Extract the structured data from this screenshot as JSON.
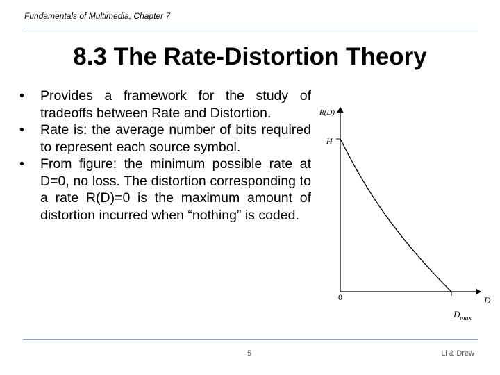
{
  "header": {
    "text": "Fundamentals of Multimedia, Chapter 7"
  },
  "title": "8.3 The Rate-Distortion Theory",
  "bullets": [
    "Provides a framework for the study of tradeoffs between Rate and Distortion.",
    "Rate is: the average number of bits required to represent each source symbol.",
    "From figure: the minimum possible rate at D=0, no loss. The distortion corresponding to a rate R(D)=0 is the maximum amount of distortion incurred when “nothing” is coded."
  ],
  "figure": {
    "y_axis_label": "R(D)",
    "h_label": "H",
    "origin_label": "0",
    "x_axis_label": "D",
    "dmax_label": {
      "main": "D",
      "sub": "max"
    }
  },
  "footer": {
    "page": "5",
    "authors": "Li & Drew"
  }
}
